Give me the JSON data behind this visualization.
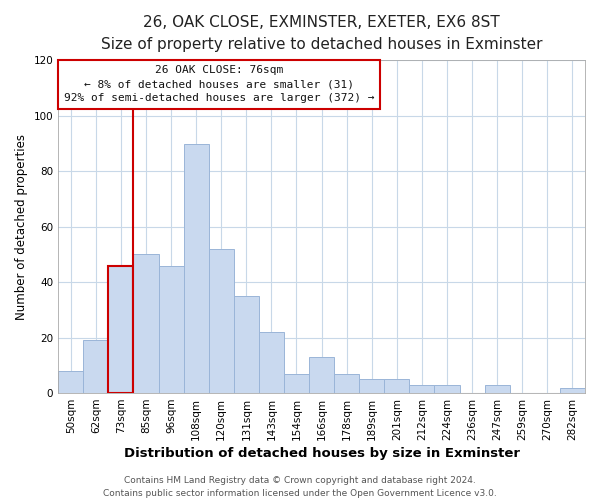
{
  "title": "26, OAK CLOSE, EXMINSTER, EXETER, EX6 8ST",
  "subtitle": "Size of property relative to detached houses in Exminster",
  "xlabel": "Distribution of detached houses by size in Exminster",
  "ylabel": "Number of detached properties",
  "bar_labels": [
    "50sqm",
    "62sqm",
    "73sqm",
    "85sqm",
    "96sqm",
    "108sqm",
    "120sqm",
    "131sqm",
    "143sqm",
    "154sqm",
    "166sqm",
    "178sqm",
    "189sqm",
    "201sqm",
    "212sqm",
    "224sqm",
    "236sqm",
    "247sqm",
    "259sqm",
    "270sqm",
    "282sqm"
  ],
  "bar_heights": [
    8,
    19,
    46,
    50,
    46,
    90,
    52,
    35,
    22,
    7,
    13,
    7,
    5,
    5,
    3,
    3,
    0,
    3,
    0,
    0,
    2
  ],
  "bar_color": "#c9d9ef",
  "bar_edge_color": "#9ab5d8",
  "highlight_bar_index": 2,
  "highlight_color": "#cc0000",
  "vline_color": "#cc0000",
  "ylim": [
    0,
    120
  ],
  "yticks": [
    0,
    20,
    40,
    60,
    80,
    100,
    120
  ],
  "annotation_title": "26 OAK CLOSE: 76sqm",
  "annotation_line1": "← 8% of detached houses are smaller (31)",
  "annotation_line2": "92% of semi-detached houses are larger (372) →",
  "annotation_box_color": "#ffffff",
  "annotation_box_edge_color": "#cc0000",
  "footer_line1": "Contains HM Land Registry data © Crown copyright and database right 2024.",
  "footer_line2": "Contains public sector information licensed under the Open Government Licence v3.0.",
  "title_fontsize": 11,
  "subtitle_fontsize": 10,
  "xlabel_fontsize": 9.5,
  "ylabel_fontsize": 8.5,
  "tick_fontsize": 7.5,
  "annotation_fontsize": 8,
  "footer_fontsize": 6.5,
  "background_color": "#ffffff",
  "grid_color": "#c8d8e8",
  "fig_width": 6.0,
  "fig_height": 5.0,
  "dpi": 100
}
